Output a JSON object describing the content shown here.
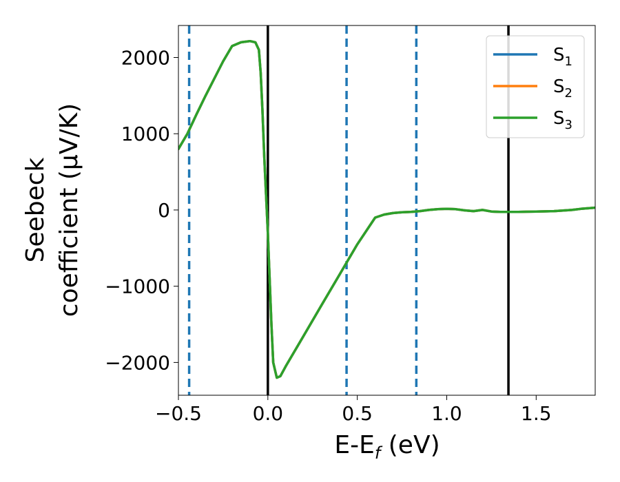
{
  "chart_data": {
    "type": "line",
    "xlabel": "E-E",
    "xlabel_sub": "f",
    "xlabel_unit": " (eV)",
    "ylabel_line1": "Seebeck",
    "ylabel_line2": "coefficient  (μV/K)",
    "xlim": [
      -0.5,
      1.83
    ],
    "ylim": [
      -2430,
      2420
    ],
    "xticks": [
      -0.5,
      0.0,
      0.5,
      1.0,
      1.5
    ],
    "xtick_labels": [
      "−0.5",
      "0.0",
      "0.5",
      "1.0",
      "1.5"
    ],
    "yticks": [
      -2000,
      -1000,
      0,
      1000,
      2000
    ],
    "ytick_labels": [
      "−2000",
      "−1000",
      "0",
      "1000",
      "2000"
    ],
    "legend_position": "top-right",
    "colors": {
      "S1": "#1f77b4",
      "S2": "#ff7f0e",
      "S3": "#2ca02c",
      "solid_vline": "#000000",
      "dashed_vline": "#1f77b4"
    },
    "vlines_solid": [
      0.0,
      1.345
    ],
    "vlines_dashed": [
      -0.44,
      0.44,
      0.83
    ],
    "series": [
      {
        "name": "S",
        "sub": "1",
        "color": "#1f77b4",
        "x": [
          -0.5,
          -0.45,
          -0.4,
          -0.35,
          -0.3,
          -0.25,
          -0.2,
          -0.15,
          -0.1,
          -0.07,
          -0.05,
          -0.04,
          -0.03,
          -0.02,
          -0.01,
          0.0,
          0.01,
          0.02,
          0.03,
          0.05,
          0.07,
          0.1,
          0.15,
          0.2,
          0.3,
          0.4,
          0.5,
          0.6,
          0.65,
          0.7,
          0.75,
          0.8,
          0.85,
          0.9,
          0.95,
          1.0,
          1.05,
          1.1,
          1.15,
          1.2,
          1.25,
          1.3,
          1.35,
          1.4,
          1.5,
          1.6,
          1.7,
          1.75,
          1.83
        ],
        "y": [
          800,
          1000,
          1250,
          1490,
          1720,
          1950,
          2150,
          2200,
          2215,
          2200,
          2100,
          1800,
          1300,
          700,
          200,
          -300,
          -900,
          -1500,
          -2000,
          -2200,
          -2180,
          -2050,
          -1850,
          -1650,
          -1250,
          -850,
          -450,
          -100,
          -60,
          -40,
          -30,
          -25,
          -15,
          0,
          10,
          15,
          10,
          -5,
          -15,
          0,
          -20,
          -25,
          -25,
          -25,
          -20,
          -15,
          0,
          15,
          30
        ]
      },
      {
        "name": "S",
        "sub": "2",
        "color": "#ff7f0e",
        "x": [
          -0.5,
          -0.45,
          -0.4,
          -0.35,
          -0.3,
          -0.25,
          -0.2,
          -0.15,
          -0.1,
          -0.07,
          -0.05,
          -0.04,
          -0.03,
          -0.02,
          -0.01,
          0.0,
          0.01,
          0.02,
          0.03,
          0.05,
          0.07,
          0.1,
          0.15,
          0.2,
          0.3,
          0.4,
          0.5,
          0.6,
          0.65,
          0.7,
          0.75,
          0.8,
          0.85,
          0.9,
          0.95,
          1.0,
          1.05,
          1.1,
          1.15,
          1.2,
          1.25,
          1.3,
          1.35,
          1.4,
          1.5,
          1.6,
          1.7,
          1.75,
          1.83
        ],
        "y": [
          800,
          1000,
          1250,
          1490,
          1720,
          1950,
          2150,
          2200,
          2215,
          2200,
          2100,
          1800,
          1300,
          700,
          200,
          -300,
          -900,
          -1500,
          -2000,
          -2200,
          -2180,
          -2050,
          -1850,
          -1650,
          -1250,
          -850,
          -450,
          -100,
          -60,
          -40,
          -30,
          -25,
          -15,
          0,
          10,
          15,
          10,
          -5,
          -15,
          0,
          -20,
          -25,
          -25,
          -25,
          -20,
          -15,
          0,
          15,
          30
        ]
      },
      {
        "name": "S",
        "sub": "3",
        "color": "#2ca02c",
        "x": [
          -0.5,
          -0.45,
          -0.4,
          -0.35,
          -0.3,
          -0.25,
          -0.2,
          -0.15,
          -0.1,
          -0.07,
          -0.05,
          -0.04,
          -0.03,
          -0.02,
          -0.01,
          0.0,
          0.01,
          0.02,
          0.03,
          0.05,
          0.07,
          0.1,
          0.15,
          0.2,
          0.3,
          0.4,
          0.5,
          0.6,
          0.65,
          0.7,
          0.75,
          0.8,
          0.85,
          0.9,
          0.95,
          1.0,
          1.05,
          1.1,
          1.15,
          1.2,
          1.25,
          1.3,
          1.35,
          1.4,
          1.5,
          1.6,
          1.7,
          1.75,
          1.83
        ],
        "y": [
          800,
          1000,
          1250,
          1490,
          1720,
          1950,
          2150,
          2200,
          2215,
          2200,
          2100,
          1800,
          1300,
          700,
          200,
          -300,
          -900,
          -1500,
          -2000,
          -2200,
          -2180,
          -2050,
          -1850,
          -1650,
          -1250,
          -850,
          -450,
          -100,
          -60,
          -40,
          -30,
          -25,
          -15,
          0,
          10,
          15,
          10,
          -5,
          -15,
          0,
          -20,
          -25,
          -25,
          -25,
          -20,
          -15,
          0,
          15,
          30
        ]
      }
    ]
  }
}
